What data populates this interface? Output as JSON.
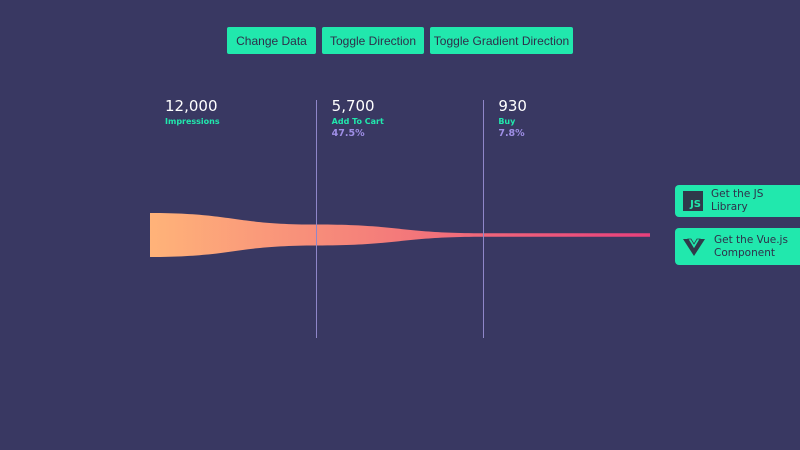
{
  "buttons": [
    "Change Data",
    "Toggle Direction",
    "Toggle Gradient Direction"
  ],
  "funnel": {
    "values": [
      12000,
      5700,
      930
    ],
    "value_labels": [
      "12,000",
      "5,700",
      "930"
    ],
    "labels": [
      "Impressions",
      "Add To Cart",
      "Buy"
    ],
    "percent_labels": [
      "47.5%",
      "7.8%"
    ]
  },
  "side_links": {
    "js_icon": "JS",
    "items": [
      "Get the JS Library",
      "Get the Vue.js Component"
    ]
  }
}
